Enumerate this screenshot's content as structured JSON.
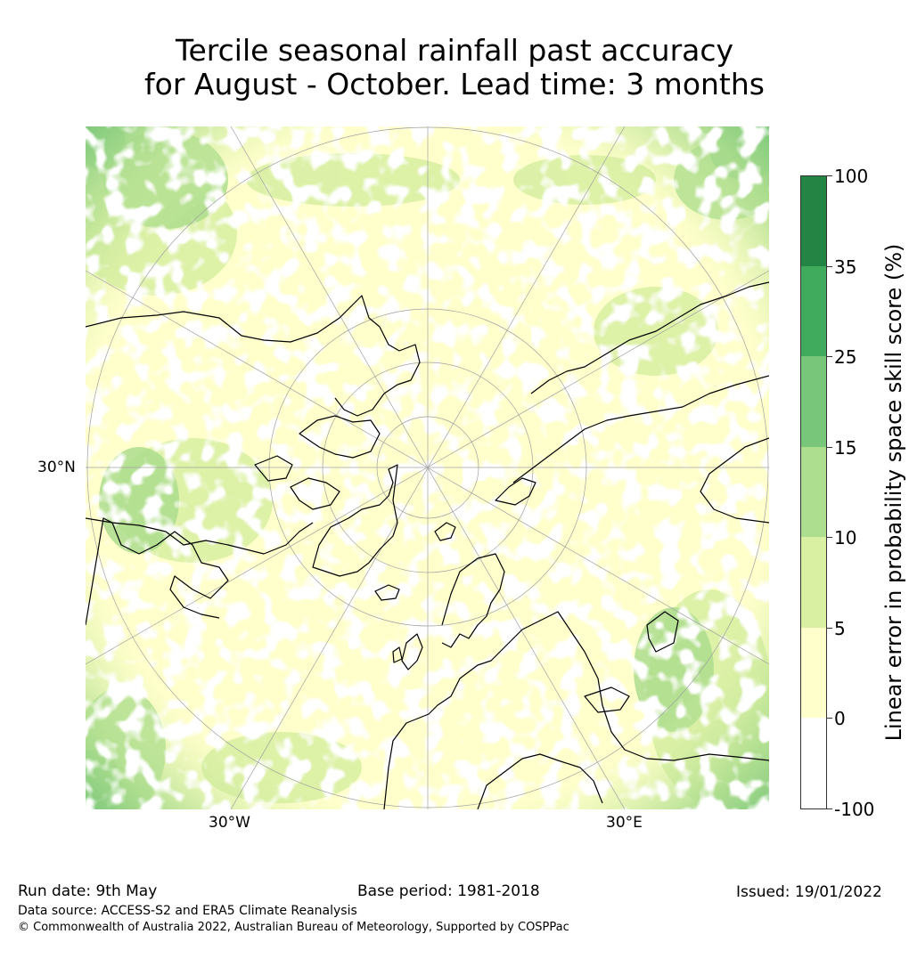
{
  "title": {
    "line1": "Tercile seasonal rainfall past accuracy",
    "line2": "for August - October. Lead time: 3 months"
  },
  "map": {
    "projection": "north-polar-stereographic",
    "labels": {
      "lat_30n": "30°N",
      "lon_30w": "30°W",
      "lon_30e": "30°E"
    },
    "graticule_color": "#a0a0a0",
    "coastline_color": "#000000"
  },
  "colorbar": {
    "title": "Linear error in probability space skill score (%)",
    "ticks": [
      "100",
      "35",
      "25",
      "15",
      "10",
      "5",
      "0",
      "-100"
    ],
    "bins": [
      {
        "range": "35-100",
        "color": "#238443"
      },
      {
        "range": "25-35",
        "color": "#41ab5d"
      },
      {
        "range": "15-25",
        "color": "#78c679"
      },
      {
        "range": "10-15",
        "color": "#addd8e"
      },
      {
        "range": "5-10",
        "color": "#d9f0a3"
      },
      {
        "range": "0-5",
        "color": "#ffffcc"
      },
      {
        "range": "-100-0",
        "color": "#ffffff"
      }
    ]
  },
  "footer": {
    "run_date": "Run date: 9th May",
    "base_period": "Base period: 1981-2018",
    "issued": "Issued: 19/01/2022",
    "data_source": "Data source: ACCESS-S2 and ERA5 Climate Reanalysis",
    "copyright": "© Commonwealth of Australia 2022, Australian Bureau of Meteorology, Supported by COSPPac"
  }
}
